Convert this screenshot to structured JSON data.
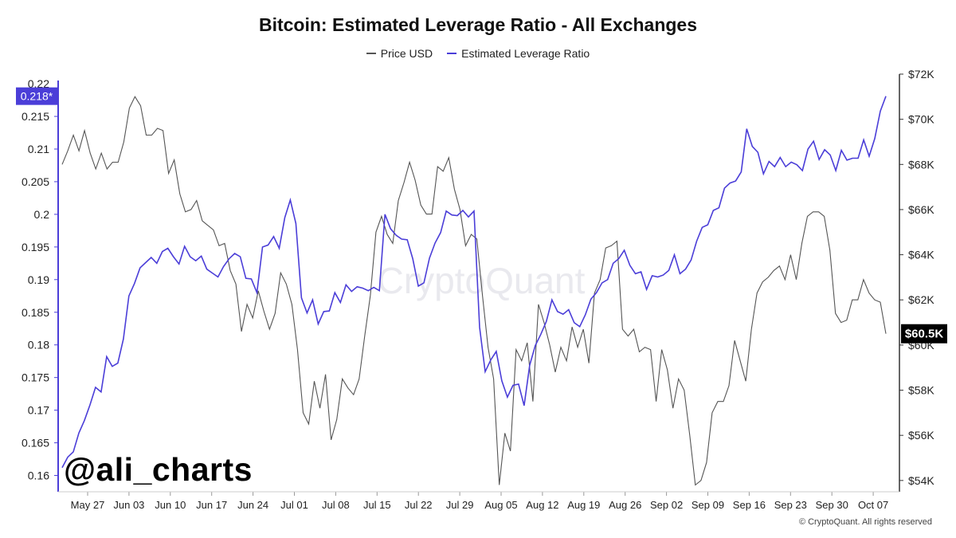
{
  "chart_data": {
    "type": "line",
    "title": "Bitcoin: Estimated Leverage Ratio - All Exchanges",
    "legend": [
      {
        "name": "Price USD",
        "color": "#555555"
      },
      {
        "name": "Estimated Leverage Ratio",
        "color": "#4b3ed8"
      }
    ],
    "x_ticks": [
      "May 27",
      "Jun 03",
      "Jun 10",
      "Jun 17",
      "Jun 24",
      "Jul 01",
      "Jul 08",
      "Jul 15",
      "Jul 22",
      "Jul 29",
      "Aug 05",
      "Aug 12",
      "Aug 19",
      "Aug 26",
      "Sep 02",
      "Sep 09",
      "Sep 16",
      "Sep 23",
      "Sep 30",
      "Oct 07"
    ],
    "y_left": {
      "range": [
        0.1575,
        0.2205
      ],
      "ticks": [
        0.16,
        0.165,
        0.17,
        0.175,
        0.18,
        0.185,
        0.19,
        0.195,
        0.2,
        0.205,
        0.21,
        0.215
      ],
      "tick_labels": [
        "0.16",
        "0.165",
        "0.17",
        "0.175",
        "0.18",
        "0.185",
        "0.19",
        "0.195",
        "0.2",
        "0.205",
        "0.21",
        "0.215"
      ],
      "top_partial_label": "0.22"
    },
    "y_right": {
      "range": [
        53500,
        72000
      ],
      "ticks": [
        54000,
        56000,
        58000,
        60000,
        62000,
        64000,
        66000,
        68000,
        70000,
        72000
      ],
      "tick_labels": [
        "$54K",
        "$56K",
        "$58K",
        "$60K",
        "$62K",
        "$64K",
        "$66K",
        "$68K",
        "$70K",
        "$72K"
      ]
    },
    "current_labels": {
      "leverage": "0.218*",
      "leverage_value": 0.2181,
      "price": "$60.5K",
      "price_value": 60500
    },
    "series": [
      {
        "name": "Price USD",
        "axis": "right",
        "color": "#555555",
        "values": [
          68000,
          68600,
          69300,
          68600,
          69500,
          68500,
          67800,
          68500,
          67800,
          68100,
          68100,
          69000,
          70500,
          71000,
          70600,
          69300,
          69300,
          69600,
          69500,
          67600,
          68200,
          66700,
          65900,
          66000,
          66400,
          65500,
          65300,
          65100,
          64400,
          64500,
          63300,
          62700,
          60600,
          61800,
          61200,
          62400,
          61500,
          60700,
          61400,
          63200,
          62700,
          61800,
          59800,
          57000,
          56500,
          58400,
          57200,
          58700,
          55800,
          56700,
          58500,
          58100,
          57800,
          58500,
          60400,
          62200,
          65000,
          65700,
          64900,
          64500,
          66400,
          67200,
          68100,
          67300,
          66200,
          65800,
          65800,
          67900,
          67700,
          68300,
          66900,
          66000,
          64400,
          64900,
          64700,
          62200,
          59900,
          58500,
          53800,
          56100,
          55300,
          59800,
          59300,
          60100,
          57500,
          61800,
          61000,
          60000,
          58800,
          59900,
          59300,
          60800,
          59900,
          60700,
          59200,
          62300,
          62900,
          64300,
          64400,
          64600,
          60700,
          60400,
          60700,
          59700,
          59900,
          59800,
          57500,
          59800,
          58900,
          57200,
          58500,
          58000,
          56000,
          53800,
          54000,
          54800,
          57000,
          57500,
          57500,
          58200,
          60200,
          59300,
          58400,
          60700,
          62300,
          62800,
          63000,
          63300,
          63500,
          62900,
          64000,
          62900,
          64500,
          65700,
          65900,
          65900,
          65700,
          64200,
          61400,
          61000,
          61100,
          62000,
          62000,
          62900,
          62300,
          62000,
          61900,
          60500
        ]
      },
      {
        "name": "Estimated Leverage Ratio",
        "axis": "left",
        "color": "#4b3ed8",
        "values": [
          0.1612,
          0.1628,
          0.1636,
          0.1665,
          0.1684,
          0.1708,
          0.1735,
          0.1728,
          0.1782,
          0.1767,
          0.1772,
          0.1809,
          0.1875,
          0.1894,
          0.1918,
          0.1926,
          0.1934,
          0.1925,
          0.1943,
          0.1948,
          0.1935,
          0.1924,
          0.1951,
          0.1935,
          0.1929,
          0.1936,
          0.1916,
          0.191,
          0.1904,
          0.192,
          0.1932,
          0.194,
          0.1935,
          0.1902,
          0.1901,
          0.188,
          0.195,
          0.1953,
          0.1966,
          0.1948,
          0.1995,
          0.2022,
          0.1986,
          0.1872,
          0.1849,
          0.1869,
          0.1832,
          0.1851,
          0.1852,
          0.188,
          0.1865,
          0.1892,
          0.1882,
          0.1889,
          0.1887,
          0.1883,
          0.1888,
          0.1883,
          0.2,
          0.1978,
          0.1968,
          0.1962,
          0.1961,
          0.1932,
          0.189,
          0.1895,
          0.1933,
          0.1956,
          0.1972,
          0.2005,
          0.1999,
          0.1998,
          0.2006,
          0.1996,
          0.2005,
          0.1827,
          0.1759,
          0.1777,
          0.179,
          0.1745,
          0.172,
          0.1738,
          0.174,
          0.1707,
          0.1769,
          0.1799,
          0.1816,
          0.1836,
          0.1869,
          0.1851,
          0.1847,
          0.1854,
          0.1834,
          0.1828,
          0.1846,
          0.187,
          0.188,
          0.1895,
          0.19,
          0.1925,
          0.1932,
          0.1945,
          0.1922,
          0.1909,
          0.1912,
          0.1885,
          0.1906,
          0.1904,
          0.1907,
          0.1914,
          0.1938,
          0.1909,
          0.1916,
          0.193,
          0.1959,
          0.198,
          0.1984,
          0.2006,
          0.201,
          0.204,
          0.2048,
          0.2051,
          0.2065,
          0.2131,
          0.2104,
          0.2095,
          0.2062,
          0.2081,
          0.2073,
          0.2087,
          0.2073,
          0.208,
          0.2076,
          0.2067,
          0.21,
          0.2112,
          0.2084,
          0.2099,
          0.2091,
          0.2067,
          0.2098,
          0.2083,
          0.2086,
          0.2086,
          0.2114,
          0.2089,
          0.2116,
          0.2158,
          0.2181
        ]
      }
    ]
  },
  "watermark": "CryptoQuant",
  "handle": "@ali_charts",
  "copyright": "© CryptoQuant. All rights reserved"
}
